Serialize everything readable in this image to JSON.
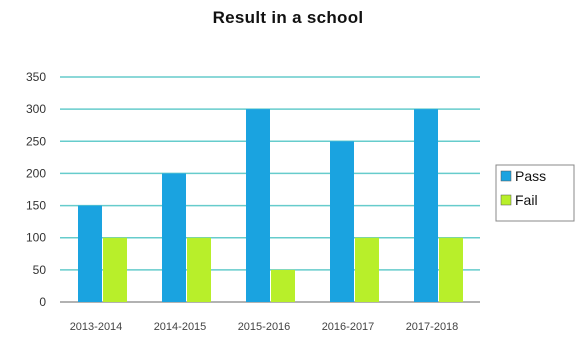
{
  "chart_data": {
    "type": "bar",
    "title": "Result in a school",
    "xlabel": "",
    "ylabel": "",
    "categories": [
      "2013-2014",
      "2014-2015",
      "2015-2016",
      "2016-2017",
      "2017-2018"
    ],
    "series": [
      {
        "name": "Pass",
        "values": [
          150,
          200,
          300,
          250,
          300
        ],
        "color": "#1aa3e0"
      },
      {
        "name": "Fail",
        "values": [
          100,
          100,
          50,
          100,
          100
        ],
        "color": "#b8ef2a"
      }
    ],
    "ylim": [
      0,
      350
    ],
    "yticks": [
      0,
      50,
      100,
      150,
      200,
      250,
      300,
      350
    ],
    "grid": true,
    "grid_color": "#66cccc",
    "legend_position": "right"
  }
}
